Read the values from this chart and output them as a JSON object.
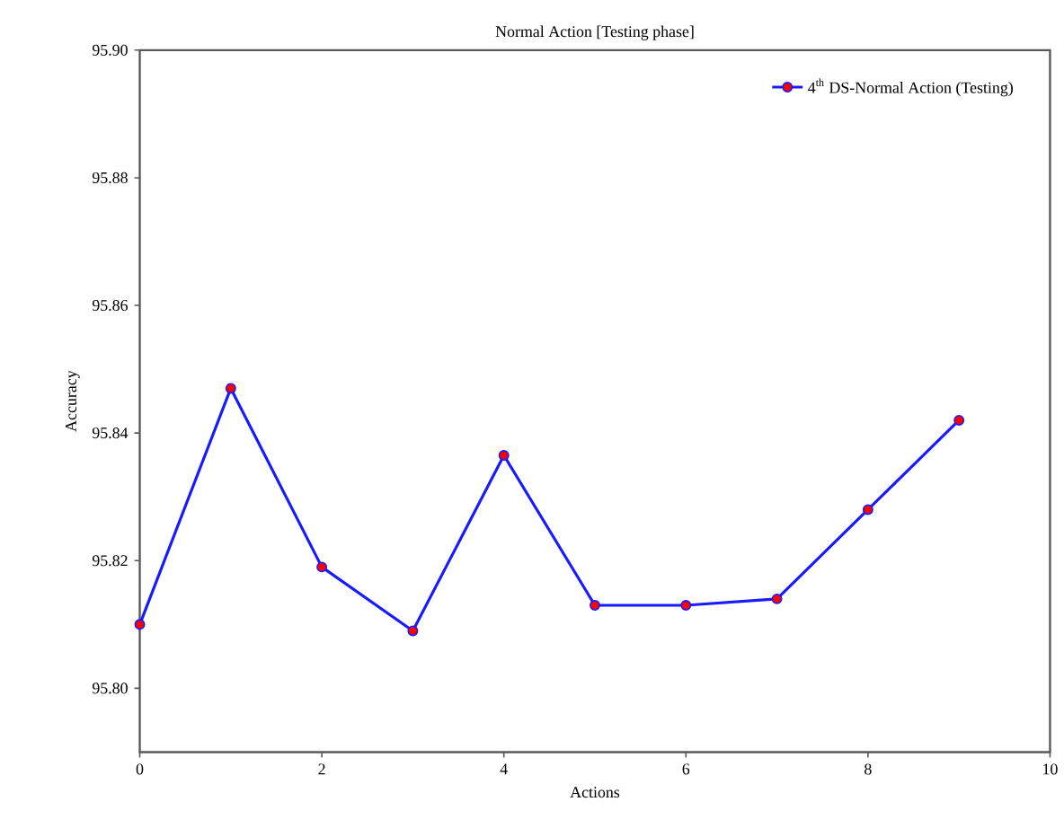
{
  "chart_data": {
    "type": "line",
    "title": "Normal Action [Testing phase]",
    "xlabel": "Actions",
    "ylabel": "Accuracy",
    "x": [
      0,
      1,
      2,
      3,
      4,
      5,
      6,
      7,
      8,
      9
    ],
    "series": [
      {
        "name": "4$^{th}$ DS-Normal Action (Testing)",
        "color": "#1a1aff",
        "values": [
          95.81,
          95.847,
          95.819,
          95.809,
          95.8365,
          95.813,
          95.813,
          95.814,
          95.828,
          95.842
        ]
      }
    ],
    "xlim": [
      0,
      10
    ],
    "xticks": [
      0,
      2,
      4,
      6,
      8,
      10
    ],
    "ylim": [
      95.79,
      95.9
    ],
    "yticks": [
      {
        "value": 95.8,
        "label": "95.80"
      },
      {
        "value": 95.82,
        "label": "95.82"
      },
      {
        "value": 95.84,
        "label": "95.84"
      },
      {
        "value": 95.86,
        "label": "95.86"
      },
      {
        "value": 95.88,
        "label": "95.88"
      },
      {
        "value": 95.9,
        "label": "95.90"
      }
    ],
    "legend": "top right",
    "marker": "circle",
    "line_style": "solid",
    "grid": false
  }
}
